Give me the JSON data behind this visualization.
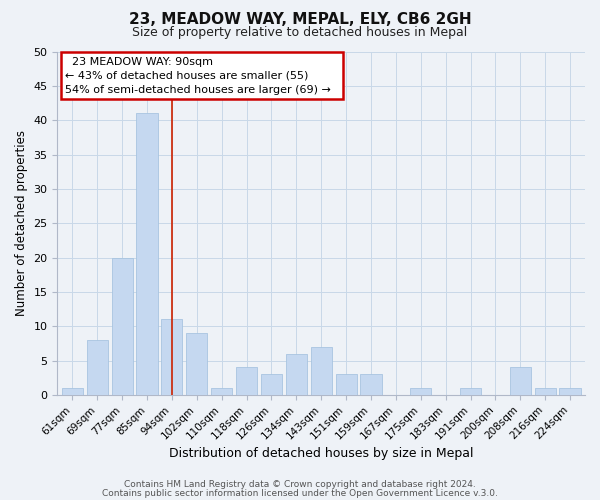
{
  "title": "23, MEADOW WAY, MEPAL, ELY, CB6 2GH",
  "subtitle": "Size of property relative to detached houses in Mepal",
  "xlabel": "Distribution of detached houses by size in Mepal",
  "ylabel": "Number of detached properties",
  "bar_labels": [
    "61sqm",
    "69sqm",
    "77sqm",
    "85sqm",
    "94sqm",
    "102sqm",
    "110sqm",
    "118sqm",
    "126sqm",
    "134sqm",
    "143sqm",
    "151sqm",
    "159sqm",
    "167sqm",
    "175sqm",
    "183sqm",
    "191sqm",
    "200sqm",
    "208sqm",
    "216sqm",
    "224sqm"
  ],
  "bar_values": [
    1,
    8,
    20,
    41,
    11,
    9,
    1,
    4,
    3,
    6,
    7,
    3,
    3,
    0,
    1,
    0,
    1,
    0,
    4,
    1,
    1
  ],
  "bar_color": "#c5d8f0",
  "bar_edge_color": "#a8c4e0",
  "ylim": [
    0,
    50
  ],
  "yticks": [
    0,
    5,
    10,
    15,
    20,
    25,
    30,
    35,
    40,
    45,
    50
  ],
  "annotation_title": "23 MEADOW WAY: 90sqm",
  "annotation_line1": "← 43% of detached houses are smaller (55)",
  "annotation_line2": "54% of semi-detached houses are larger (69) →",
  "annotation_box_facecolor": "#ffffff",
  "annotation_box_edgecolor": "#cc0000",
  "vline_x": 4,
  "footer_line1": "Contains HM Land Registry data © Crown copyright and database right 2024.",
  "footer_line2": "Contains public sector information licensed under the Open Government Licence v.3.0.",
  "grid_color": "#c8d8e8",
  "bg_color": "#eef2f7",
  "title_fontsize": 11,
  "subtitle_fontsize": 9
}
